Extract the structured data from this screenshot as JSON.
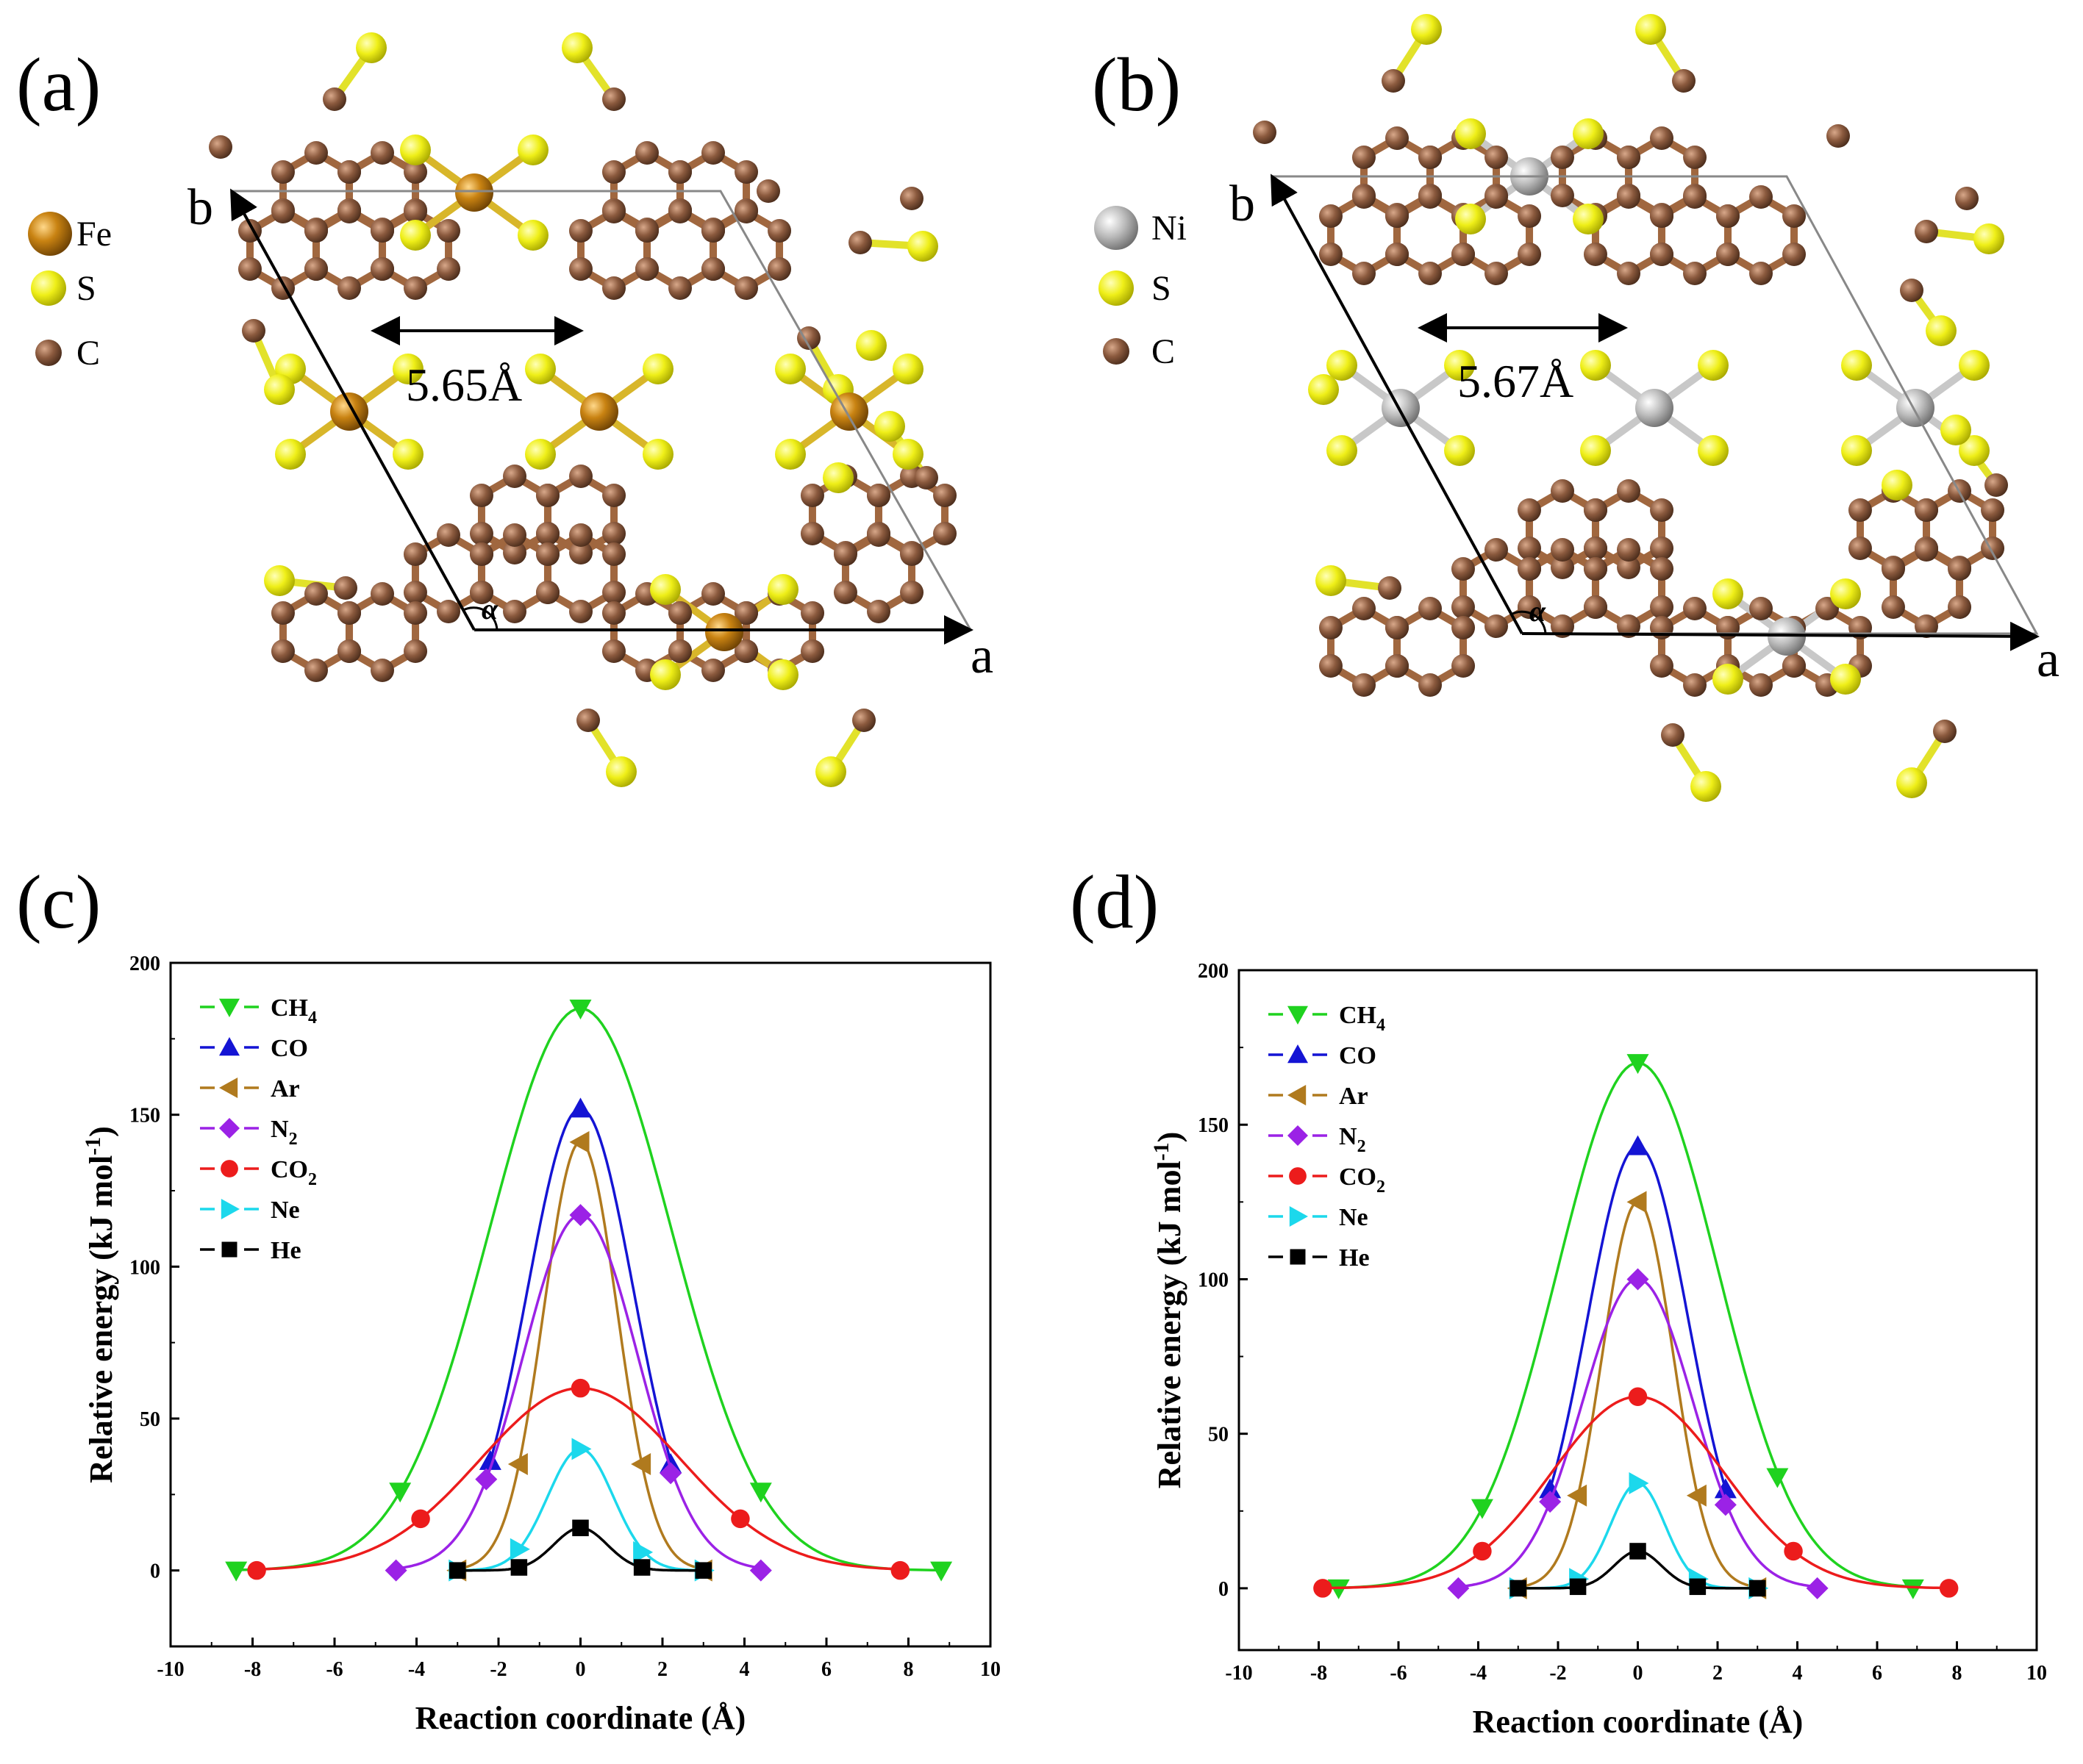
{
  "panels": {
    "a": {
      "label": "(a)",
      "legend": [
        {
          "symbol": "Fe",
          "color": "#b8740f"
        },
        {
          "symbol": "S",
          "color": "#ecec1a"
        },
        {
          "symbol": "C",
          "color": "#8b5a3e"
        }
      ],
      "distance_label": "5.65Å",
      "axis_a": "a",
      "axis_b": "b",
      "angle": "α"
    },
    "b": {
      "label": "(b)",
      "legend": [
        {
          "symbol": "Ni",
          "color": "#b4b4b4"
        },
        {
          "symbol": "S",
          "color": "#ecec1a"
        },
        {
          "symbol": "C",
          "color": "#8b5a3e"
        }
      ],
      "distance_label": "5.67Å",
      "axis_a": "a",
      "axis_b": "b",
      "angle": "α"
    }
  },
  "series_styles": [
    {
      "name": "CH4",
      "color": "#1fd21f",
      "marker": "triangle-down"
    },
    {
      "name": "CO",
      "color": "#1414d4",
      "marker": "triangle-up"
    },
    {
      "name": "Ar",
      "color": "#b07a1e",
      "marker": "triangle-left"
    },
    {
      "name": "N2",
      "color": "#9b22e6",
      "marker": "diamond"
    },
    {
      "name": "CO2",
      "color": "#ec1c1c",
      "marker": "circle"
    },
    {
      "name": "Ne",
      "color": "#1cd8ec",
      "marker": "triangle-right"
    },
    {
      "name": "He",
      "color": "#000000",
      "marker": "square"
    }
  ],
  "chart_data": [
    {
      "panel_label": "(c)",
      "type": "line",
      "xlabel": "Reaction coordinate (Å)",
      "ylabel": "Relative energy (kJ mol-1)",
      "xlim": [
        -10,
        10
      ],
      "ylim": [
        -25,
        200
      ],
      "xticks": [
        -10,
        -8,
        -6,
        -4,
        -2,
        0,
        2,
        4,
        6,
        8,
        10
      ],
      "yticks": [
        0,
        50,
        100,
        150,
        200
      ],
      "legend_position": "top-left",
      "series": [
        {
          "name": "CH4",
          "x": [
            -8.4,
            -4.4,
            0,
            4.4,
            8.8
          ],
          "y": [
            0,
            26,
            185,
            26,
            0
          ]
        },
        {
          "name": "CO",
          "x": [
            -2.2,
            0,
            2.2
          ],
          "y": [
            36,
            152,
            35
          ]
        },
        {
          "name": "Ar",
          "x": [
            -3,
            -1.5,
            0,
            1.5,
            3
          ],
          "y": [
            0,
            35,
            141,
            35,
            0
          ]
        },
        {
          "name": "N2",
          "x": [
            -4.5,
            -2.3,
            0,
            2.2,
            4.4
          ],
          "y": [
            0,
            30,
            117,
            32,
            0
          ]
        },
        {
          "name": "CO2",
          "x": [
            -7.9,
            -3.9,
            0,
            3.9,
            7.8
          ],
          "y": [
            0,
            17,
            60,
            17,
            0
          ]
        },
        {
          "name": "Ne",
          "x": [
            -3,
            -1.5,
            0,
            1.5,
            3
          ],
          "y": [
            0,
            7,
            40,
            6,
            0
          ]
        },
        {
          "name": "He",
          "x": [
            -3,
            -1.5,
            0,
            1.5,
            3
          ],
          "y": [
            0,
            1,
            14,
            1,
            0
          ]
        }
      ]
    },
    {
      "panel_label": "(d)",
      "type": "line",
      "xlabel": "Reaction coordinate (Å)",
      "ylabel": "Relative energy (kJ mol-1)",
      "xlim": [
        -10,
        10
      ],
      "ylim": [
        -20,
        200
      ],
      "xticks": [
        -10,
        -8,
        -6,
        -4,
        -2,
        0,
        2,
        4,
        6,
        8,
        10
      ],
      "yticks": [
        0,
        50,
        100,
        150,
        200
      ],
      "legend_position": "top-left",
      "series": [
        {
          "name": "CH4",
          "x": [
            -7.5,
            -3.9,
            0,
            3.5,
            6.9
          ],
          "y": [
            0,
            26,
            170,
            36,
            0
          ]
        },
        {
          "name": "CO",
          "x": [
            -2.2,
            0,
            2.2
          ],
          "y": [
            32,
            143,
            32
          ]
        },
        {
          "name": "Ar",
          "x": [
            -3,
            -1.5,
            0,
            1.5,
            3
          ],
          "y": [
            0,
            30,
            125,
            30,
            0
          ]
        },
        {
          "name": "N2",
          "x": [
            -4.5,
            -2.2,
            0,
            2.2,
            4.5
          ],
          "y": [
            0,
            28,
            100,
            27,
            0
          ]
        },
        {
          "name": "CO2",
          "x": [
            -7.9,
            -3.9,
            0,
            3.9,
            7.8
          ],
          "y": [
            0,
            12,
            62,
            12,
            0
          ]
        },
        {
          "name": "Ne",
          "x": [
            -3,
            -1.5,
            0,
            1.5,
            3
          ],
          "y": [
            0,
            3,
            34,
            3,
            0
          ]
        },
        {
          "name": "He",
          "x": [
            -3,
            -1.5,
            0,
            1.5,
            3
          ],
          "y": [
            0,
            0.5,
            12,
            0.5,
            0
          ]
        }
      ]
    }
  ]
}
